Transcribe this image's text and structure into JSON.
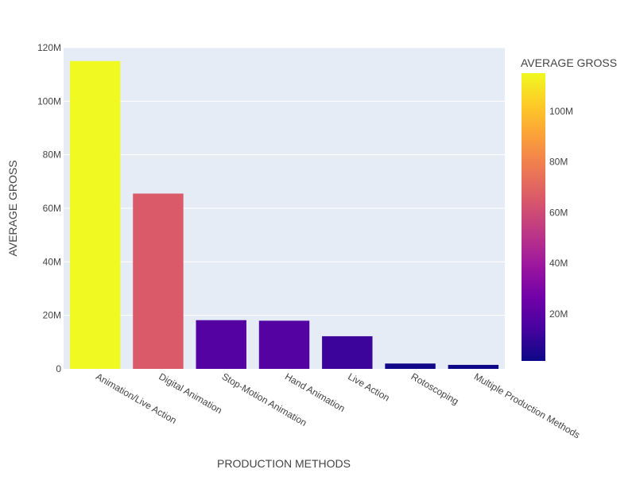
{
  "chart_data": {
    "type": "bar",
    "title": "",
    "xlabel": "PRODUCTION METHODS",
    "ylabel": "AVERAGE GROSS",
    "categories": [
      "Animation/Live Action",
      "Digital Animation",
      "Stop-Motion Animation",
      "Hand Animation",
      "Live Action",
      "Rotoscoping",
      "Multiple Production Methods"
    ],
    "values": [
      115000000,
      65500000,
      18200000,
      18000000,
      12200000,
      2000000,
      1500000
    ],
    "ylim": [
      0,
      120000000
    ],
    "yticks": [
      0,
      20000000,
      40000000,
      60000000,
      80000000,
      100000000,
      120000000
    ],
    "ytick_labels": [
      "0",
      "20M",
      "40M",
      "60M",
      "80M",
      "100M",
      "120M"
    ],
    "grid": true,
    "colorbar": {
      "title": "AVERAGE GROSS",
      "range": [
        1500000,
        115000000
      ],
      "ticks": [
        20000000,
        40000000,
        60000000,
        80000000,
        100000000
      ],
      "tick_labels": [
        "20M",
        "40M",
        "60M",
        "80M",
        "100M"
      ],
      "colorscale": [
        "#0d0887",
        "#46039f",
        "#7201a8",
        "#9c179e",
        "#bd3786",
        "#d8576b",
        "#ed7953",
        "#fb9f3a",
        "#fdca26",
        "#f0f921"
      ]
    },
    "plot_bg": "#e5ecf6",
    "text_color": "#444444"
  }
}
